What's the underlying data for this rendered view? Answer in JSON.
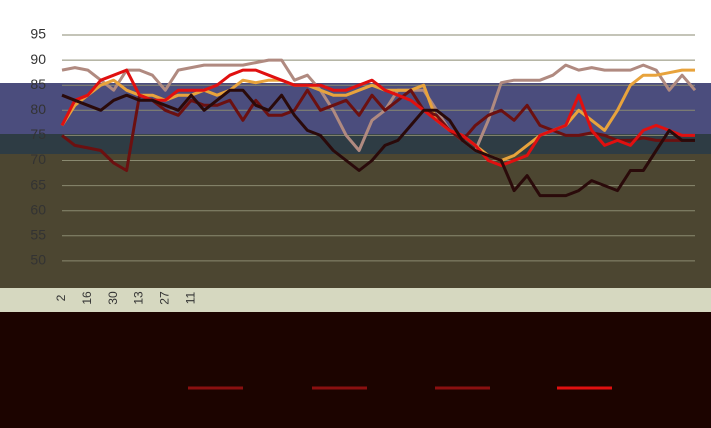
{
  "chart_data": {
    "type": "line",
    "categories": [
      "2",
      null,
      "16",
      null,
      "30",
      null,
      "13",
      null,
      "27",
      null,
      "11",
      null,
      null,
      null,
      null,
      null,
      null,
      null,
      null,
      null,
      null,
      null,
      null,
      null,
      null,
      null,
      null,
      null,
      null,
      null,
      null,
      null,
      null,
      null,
      null,
      null,
      null,
      null,
      null,
      null,
      null,
      null,
      null,
      null,
      null,
      null,
      null,
      null,
      null,
      null
    ],
    "series": [
      {
        "color": "#b08a80",
        "values": [
          88,
          88.5,
          88,
          86,
          84,
          88,
          88,
          87,
          84,
          88,
          88.5,
          89,
          89,
          89,
          89,
          89.5,
          90,
          90,
          86,
          87,
          84,
          80,
          75,
          72,
          78,
          80,
          84,
          84,
          84,
          80,
          76,
          74,
          72,
          78,
          85.5,
          86,
          86,
          86,
          87,
          89,
          88,
          88.5,
          88,
          88,
          88,
          89,
          88,
          84,
          87,
          84
        ]
      },
      {
        "color": "#e8a33c",
        "values": [
          77,
          81,
          83,
          85,
          86,
          84,
          83,
          83,
          82,
          83,
          83,
          84,
          83,
          84,
          86,
          85.5,
          86,
          86,
          85,
          85,
          84,
          83,
          83,
          84,
          85,
          84,
          84,
          84,
          85,
          78,
          76,
          75,
          73,
          71,
          70,
          71,
          73,
          75,
          76,
          77,
          80,
          78,
          76,
          80,
          85,
          87,
          87,
          87.5,
          88,
          88
        ]
      },
      {
        "color": "#6b1010",
        "values": [
          75,
          73,
          72.5,
          72,
          69.5,
          68,
          83,
          82,
          80,
          79,
          82,
          81,
          81,
          82,
          78,
          82,
          79,
          79,
          80,
          84,
          80,
          81,
          82,
          79,
          83,
          80,
          82,
          84,
          80,
          79,
          76,
          74,
          77,
          79,
          80,
          78,
          81,
          77,
          76,
          75,
          75,
          75.5,
          75,
          74,
          74,
          74.5,
          74,
          74,
          74,
          74
        ]
      },
      {
        "color": "#e01010",
        "values": [
          77,
          82,
          83,
          86,
          87,
          88,
          83,
          82,
          82,
          84,
          84,
          84,
          85,
          87,
          88,
          88,
          87,
          86,
          85,
          85,
          85,
          84,
          84,
          85,
          86,
          84,
          83,
          82,
          80,
          78,
          76,
          75,
          73,
          70,
          69,
          70,
          71,
          75,
          76,
          77,
          83,
          76,
          73,
          74,
          73,
          76,
          77,
          76,
          75,
          75
        ]
      },
      {
        "color": "#2a0a0a",
        "values": [
          83,
          82,
          81,
          80,
          82,
          83,
          82,
          82,
          81,
          80,
          83,
          80,
          82,
          84,
          84,
          81,
          80,
          83,
          79,
          76,
          75,
          72,
          70,
          68,
          70,
          73,
          74,
          77,
          80,
          80,
          78,
          74,
          72,
          71,
          70,
          64,
          67,
          63,
          63,
          63,
          64,
          66,
          65,
          64,
          68,
          68,
          72,
          76,
          74,
          74
        ]
      }
    ],
    "ylim": [
      45,
      95
    ],
    "yticks": [
      50,
      55,
      60,
      65,
      70,
      75,
      80,
      85,
      90,
      95
    ],
    "grid": true
  }
}
